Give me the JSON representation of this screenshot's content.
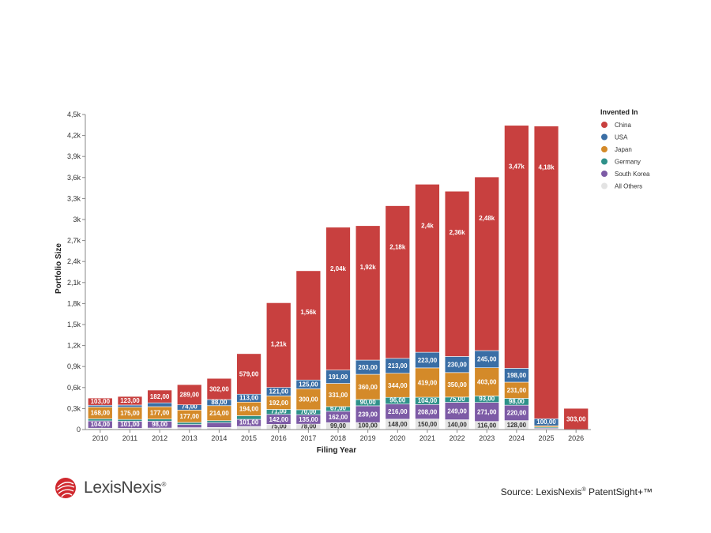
{
  "chart_data": {
    "type": "bar",
    "stacked": true,
    "xlabel": "Filing Year",
    "ylabel": "Portfolio Size",
    "ylim": [
      0,
      4500
    ],
    "y_ticks": [
      {
        "value": 0,
        "label": "0"
      },
      {
        "value": 300,
        "label": "0,3k"
      },
      {
        "value": 600,
        "label": "0,6k"
      },
      {
        "value": 900,
        "label": "0,9k"
      },
      {
        "value": 1200,
        "label": "1,2k"
      },
      {
        "value": 1500,
        "label": "1,5k"
      },
      {
        "value": 1800,
        "label": "1,8k"
      },
      {
        "value": 2100,
        "label": "2,1k"
      },
      {
        "value": 2400,
        "label": "2,4k"
      },
      {
        "value": 2700,
        "label": "2,7k"
      },
      {
        "value": 3000,
        "label": "3k"
      },
      {
        "value": 3300,
        "label": "3,3k"
      },
      {
        "value": 3600,
        "label": "3,6k"
      },
      {
        "value": 3900,
        "label": "3,9k"
      },
      {
        "value": 4200,
        "label": "4,2k"
      },
      {
        "value": 4500,
        "label": "4,5k"
      }
    ],
    "grid": false,
    "legend": {
      "title": "Invented In",
      "position": "right"
    },
    "categories": [
      "2010",
      "2011",
      "2012",
      "2013",
      "2014",
      "2015",
      "2016",
      "2017",
      "2018",
      "2019",
      "2020",
      "2021",
      "2022",
      "2023",
      "2024",
      "2025",
      "2026"
    ],
    "series": [
      {
        "name": "All Others",
        "color": "#e3e3e3",
        "values": [
          20,
          18,
          22,
          27,
          30,
          45,
          75,
          78,
          99,
          100,
          148,
          150,
          140,
          116,
          128,
          8,
          0
        ],
        "labels": [
          "",
          "",
          "",
          "",
          "",
          "",
          "75,00",
          "78,00",
          "99,00",
          "100,00",
          "148,00",
          "150,00",
          "140,00",
          "116,00",
          "128,00",
          "",
          ""
        ]
      },
      {
        "name": "South Korea",
        "color": "#7d5ba6",
        "values": [
          104,
          101,
          98,
          45,
          69,
          101,
          142,
          135,
          162,
          239,
          216,
          208,
          249,
          271,
          220,
          12,
          0
        ],
        "labels": [
          "104,00",
          "101,00",
          "98,00",
          "",
          "",
          "101,00",
          "142,00",
          "135,00",
          "162,00",
          "239,00",
          "216,00",
          "208,00",
          "249,00",
          "271,00",
          "220,00",
          "",
          ""
        ]
      },
      {
        "name": "Germany",
        "color": "#2f918a",
        "values": [
          30,
          26,
          30,
          30,
          28,
          52,
          71,
          70,
          67,
          90,
          96,
          104,
          75,
          93,
          98,
          15,
          0
        ],
        "labels": [
          "",
          "",
          "",
          "",
          "",
          "",
          "71,00",
          "70,00",
          "67,00",
          "90,00",
          "96,00",
          "104,00",
          "75,00",
          "93,00",
          "98,00",
          "",
          ""
        ]
      },
      {
        "name": "Japan",
        "color": "#d48a29",
        "values": [
          168,
          175,
          177,
          177,
          214,
          194,
          192,
          300,
          331,
          360,
          344,
          419,
          350,
          403,
          231,
          20,
          0
        ],
        "labels": [
          "168,00",
          "175,00",
          "177,00",
          "177,00",
          "214,00",
          "194,00",
          "192,00",
          "300,00",
          "331,00",
          "360,00",
          "344,00",
          "419,00",
          "350,00",
          "403,00",
          "231,00",
          "",
          ""
        ]
      },
      {
        "name": "USA",
        "color": "#3a6ea5",
        "values": [
          25,
          30,
          55,
          74,
          88,
          113,
          121,
          125,
          191,
          203,
          213,
          223,
          230,
          245,
          198,
          100,
          0
        ],
        "labels": [
          "",
          "",
          "",
          "74,00",
          "88,00",
          "113,00",
          "121,00",
          "125,00",
          "191,00",
          "203,00",
          "213,00",
          "223,00",
          "230,00",
          "245,00",
          "198,00",
          "100,00",
          ""
        ]
      },
      {
        "name": "China",
        "color": "#c8403f",
        "values": [
          103,
          123,
          182,
          289,
          302,
          579,
          1210,
          1560,
          2040,
          1920,
          2180,
          2400,
          2360,
          2480,
          3470,
          4180,
          303
        ],
        "labels": [
          "103,00",
          "123,00",
          "182,00",
          "289,00",
          "302,00",
          "579,00",
          "1,21k",
          "1,56k",
          "2,04k",
          "1,92k",
          "2,18k",
          "2,4k",
          "2,36k",
          "2,48k",
          "3,47k",
          "4,18k",
          "303,00"
        ]
      }
    ],
    "legend_order": [
      "China",
      "USA",
      "Japan",
      "Germany",
      "South Korea",
      "All Others"
    ]
  },
  "footer": {
    "logo_text": "LexisNexis",
    "logo_reg": "®",
    "logo_icon": "lexisnexis-globe-icon",
    "source_prefix": "Source: LexisNexis",
    "source_reg": "®",
    "source_suffix": " PatentSight+™"
  }
}
